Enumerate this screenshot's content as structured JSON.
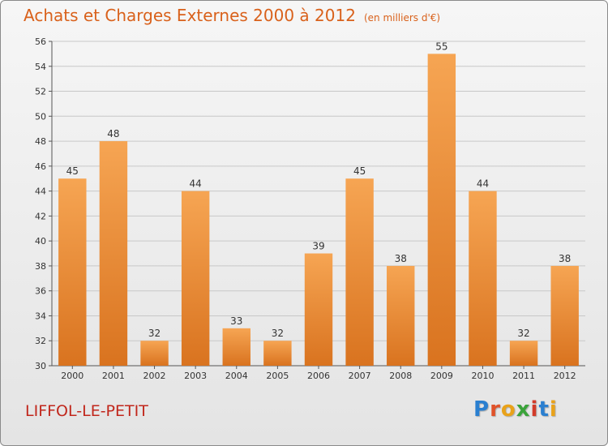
{
  "page": {
    "title": "Achats et Charges Externes 2000 à 2012",
    "subtitle": "(en milliers d'€)",
    "place": "LIFFOL-LE-PETIT",
    "logo": {
      "letters": [
        "P",
        "r",
        "o",
        "x",
        "i",
        "t",
        "i"
      ],
      "colors": [
        "#2a7fd0",
        "#e0522a",
        "#e9a21a",
        "#3aa33a",
        "#d23b2a",
        "#2a7fd0",
        "#e9a21a"
      ]
    }
  },
  "colors": {
    "bar_top": "#f6a553",
    "bar_bottom": "#d9731f",
    "grid": "#c8c8c8",
    "axis": "#555555"
  },
  "chart_data": {
    "type": "bar",
    "title": "Achats et Charges Externes 2000 à 2012",
    "subtitle": "(en milliers d'€)",
    "categories": [
      "2000",
      "2001",
      "2002",
      "2003",
      "2004",
      "2005",
      "2006",
      "2007",
      "2008",
      "2009",
      "2010",
      "2011",
      "2012"
    ],
    "values": [
      45,
      48,
      32,
      44,
      33,
      32,
      39,
      45,
      38,
      55,
      44,
      32,
      38
    ],
    "ylim": [
      30,
      56
    ],
    "yticks": [
      30,
      32,
      34,
      36,
      38,
      40,
      42,
      44,
      46,
      48,
      50,
      52,
      54,
      56
    ],
    "grid": true,
    "xlabel": "",
    "ylabel": ""
  }
}
